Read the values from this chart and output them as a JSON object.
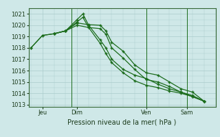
{
  "background_color": "#cfe8e8",
  "grid_color": "#aacccc",
  "line_color": "#1a6b1a",
  "title": "Pression niveau de la mer( hPa )",
  "ylim": [
    1012.8,
    1021.5
  ],
  "yticks": [
    1013,
    1014,
    1015,
    1016,
    1017,
    1018,
    1019,
    1020,
    1021
  ],
  "xtick_labels": [
    "Jeu",
    "Dim",
    "Ven",
    "Sam"
  ],
  "xtick_positions": [
    1,
    4,
    10,
    13.5
  ],
  "xlim": [
    -0.2,
    16.0
  ],
  "series1_x": [
    0,
    1,
    2,
    3,
    4,
    5,
    6,
    6.5,
    7,
    8,
    9,
    10,
    11,
    12,
    13,
    14,
    15
  ],
  "series1_y": [
    1018.0,
    1019.1,
    1019.25,
    1019.5,
    1020.2,
    1020.05,
    1020.0,
    1019.5,
    1018.5,
    1017.7,
    1016.5,
    1015.8,
    1015.6,
    1015.0,
    1014.4,
    1014.1,
    1013.3
  ],
  "series2_x": [
    0,
    1,
    2,
    3,
    4,
    5,
    6,
    6.5,
    7,
    8,
    9,
    10,
    11,
    12,
    13,
    14,
    15
  ],
  "series2_y": [
    1018.0,
    1019.1,
    1019.25,
    1019.5,
    1020.0,
    1019.8,
    1019.7,
    1019.2,
    1018.0,
    1017.1,
    1016.1,
    1015.2,
    1015.0,
    1014.6,
    1014.1,
    1013.8,
    1013.3
  ],
  "series3_x": [
    2,
    3,
    4,
    4.5,
    5,
    6,
    6.5,
    7,
    8,
    9,
    10,
    11,
    12,
    13,
    14,
    15
  ],
  "series3_y": [
    1019.25,
    1019.5,
    1020.5,
    1021.0,
    1020.0,
    1018.7,
    1018.0,
    1017.0,
    1016.1,
    1015.6,
    1015.3,
    1014.8,
    1014.4,
    1014.1,
    1013.7,
    1013.3
  ],
  "series4_x": [
    2,
    3,
    4,
    4.5,
    5,
    6,
    6.5,
    7,
    8,
    9,
    10,
    11,
    12,
    13,
    14,
    15
  ],
  "series4_y": [
    1019.25,
    1019.5,
    1020.3,
    1020.7,
    1019.8,
    1018.4,
    1017.5,
    1016.7,
    1015.8,
    1015.1,
    1014.7,
    1014.5,
    1014.2,
    1014.0,
    1013.7,
    1013.3
  ],
  "vline_positions": [
    3.5,
    10,
    13.5
  ],
  "marker": "+",
  "marker_size": 3,
  "linewidth": 0.9
}
